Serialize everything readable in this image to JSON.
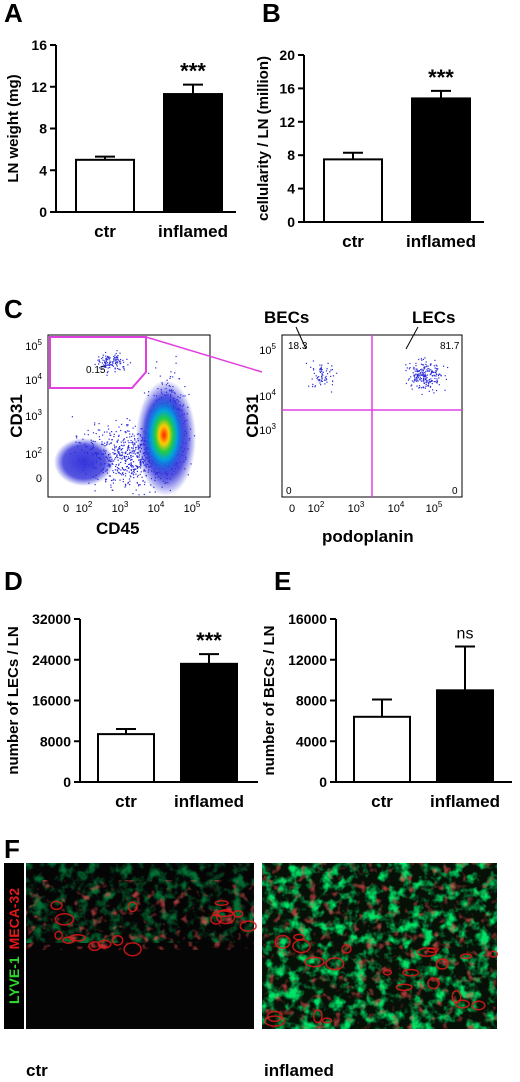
{
  "chart_data": [
    {
      "panel": "A",
      "type": "bar",
      "categories": [
        "ctr",
        "inflamed"
      ],
      "values": [
        5.0,
        11.3
      ],
      "errors": [
        0.3,
        0.9
      ],
      "ylabel": "LN weight (mg)",
      "ylim": [
        0,
        16
      ],
      "yticks": [
        "0",
        "4",
        "8",
        "12",
        "16"
      ],
      "fills": [
        "#ffffff",
        "#000000"
      ],
      "annotations": [
        "",
        "***"
      ]
    },
    {
      "panel": "B",
      "type": "bar",
      "categories": [
        "ctr",
        "inflamed"
      ],
      "values": [
        7.5,
        14.8
      ],
      "errors": [
        0.8,
        0.9
      ],
      "ylabel": "cellularity / LN (million)",
      "ylim": [
        0,
        20
      ],
      "yticks": [
        "0",
        "4",
        "8",
        "12",
        "16",
        "20"
      ],
      "fills": [
        "#ffffff",
        "#000000"
      ],
      "annotations": [
        "",
        "***"
      ]
    },
    {
      "panel": "C-left",
      "type": "scatter",
      "xlabel": "CD45",
      "ylabel": "CD31",
      "xticks": [
        "0",
        "10",
        "10",
        "10",
        "10"
      ],
      "xtick_exp": [
        "",
        "2",
        "3",
        "4",
        "5"
      ],
      "yticks": [
        "0",
        "10",
        "10",
        "10",
        "10"
      ],
      "ytick_exp": [
        "",
        "2",
        "3",
        "4",
        "5"
      ],
      "gate_value": "0.15",
      "point_color": "#2b2bd9"
    },
    {
      "panel": "C-right",
      "type": "scatter",
      "xlabel": "podoplanin",
      "ylabel": "CD31",
      "xticks": [
        "0",
        "10",
        "10",
        "10",
        "10"
      ],
      "xtick_exp": [
        "",
        "2",
        "3",
        "4",
        "5"
      ],
      "yticks": [
        "10",
        "10",
        "10"
      ],
      "ytick_exp": [
        "3",
        "4",
        "5"
      ],
      "quadrants": {
        "top_left": "18.3",
        "top_right": "81.7",
        "bottom_left": "0",
        "bottom_right": "0"
      },
      "annotations": [
        "BECs",
        "LECs"
      ],
      "gate_color": "#e040e0"
    },
    {
      "panel": "D",
      "type": "bar",
      "categories": [
        "ctr",
        "inflamed"
      ],
      "values": [
        9400,
        23200
      ],
      "errors": [
        1000,
        1900
      ],
      "ylabel": "number of LECs / LN",
      "ylim": [
        0,
        32000
      ],
      "yticks": [
        "0",
        "8000",
        "16000",
        "24000",
        "32000"
      ],
      "fills": [
        "#ffffff",
        "#000000"
      ],
      "annotations": [
        "",
        "***"
      ]
    },
    {
      "panel": "E",
      "type": "bar",
      "categories": [
        "ctr",
        "inflamed"
      ],
      "values": [
        6400,
        9000
      ],
      "errors": [
        1700,
        4300
      ],
      "ylabel": "number of BECs / LN",
      "ylim": [
        0,
        16000
      ],
      "yticks": [
        "0",
        "4000",
        "8000",
        "12000",
        "16000"
      ],
      "fills": [
        "#ffffff",
        "#000000"
      ],
      "annotations": [
        "",
        "ns"
      ]
    }
  ],
  "panel_F": {
    "label": "F",
    "stain_red": "MECA-32",
    "stain_green": "LYVE-1",
    "images": [
      "ctr",
      "inflamed"
    ],
    "colors": {
      "red": "#e01818",
      "green": "#2bd92b"
    }
  },
  "panel_C_label": "C"
}
